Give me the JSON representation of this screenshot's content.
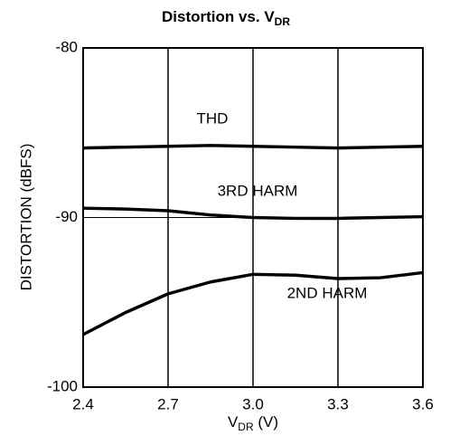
{
  "chart_data": {
    "type": "line",
    "title": {
      "text": "Distortion vs. V",
      "subscript": "DR"
    },
    "xlabel": {
      "text": "V",
      "subscript": "DR",
      "suffix": " (V)"
    },
    "ylabel": "DISTORTION (dBFS)",
    "x": [
      2.4,
      2.55,
      2.7,
      2.85,
      3.0,
      3.15,
      3.3,
      3.45,
      3.6
    ],
    "series": [
      {
        "name": "THD",
        "color": "#000000",
        "values": [
          -85.9,
          -85.85,
          -85.8,
          -85.75,
          -85.8,
          -85.85,
          -85.9,
          -85.85,
          -85.8
        ]
      },
      {
        "name": "3RD HARM",
        "color": "#000000",
        "values": [
          -89.45,
          -89.5,
          -89.6,
          -89.85,
          -90.0,
          -90.05,
          -90.05,
          -90.0,
          -89.95
        ]
      },
      {
        "name": "2ND HARM",
        "color": "#000000",
        "values": [
          -96.9,
          -95.6,
          -94.5,
          -93.8,
          -93.35,
          -93.4,
          -93.6,
          -93.55,
          -93.25
        ]
      }
    ],
    "xlim": [
      2.4,
      3.6
    ],
    "xticks": [
      2.4,
      2.7,
      {
        "value": 3,
        "label": "3.0"
      },
      3.3,
      3.6
    ],
    "ylim": [
      -100,
      -80
    ],
    "yticks": [
      -100,
      -90,
      -80
    ],
    "xgrid": true,
    "ygrid": true
  }
}
